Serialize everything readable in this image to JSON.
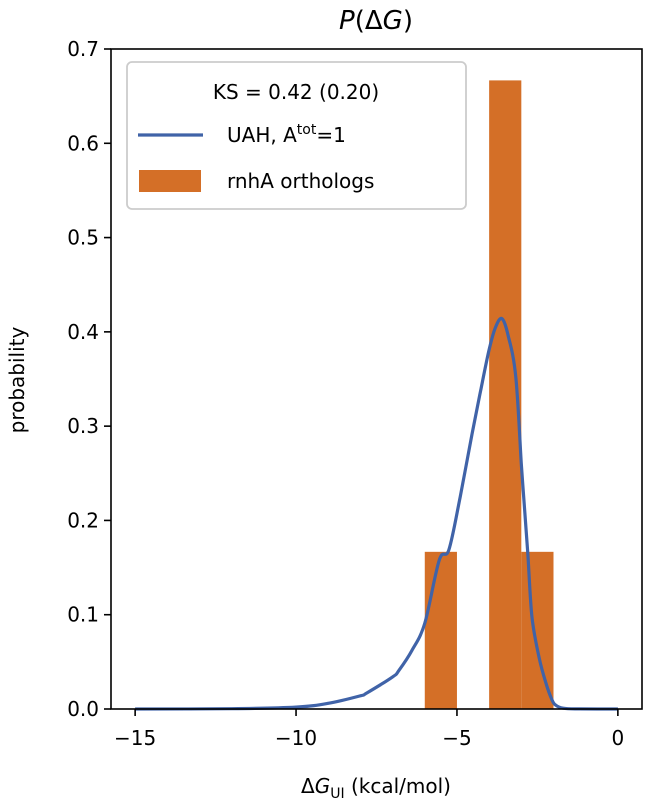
{
  "chart_data": {
    "type": "bar",
    "title": "P(ΔG)",
    "title_parts": {
      "italic_main": "P",
      "open": "(Δ",
      "italic_var": "G",
      "close": ")"
    },
    "xlabel": "ΔG_UI (kcal/mol)",
    "xlabel_parts": {
      "delta": "Δ",
      "var": "G",
      "sub": "UI",
      "units": " (kcal/mol)"
    },
    "ylabel": "probability",
    "xlim": [
      -15.75,
      0.75
    ],
    "ylim": [
      0.0,
      0.7
    ],
    "xticks": [
      -15,
      -10,
      -5,
      0
    ],
    "xtick_labels": [
      "−15",
      "−10",
      "−5",
      "0"
    ],
    "yticks": [
      0.0,
      0.1,
      0.2,
      0.3,
      0.4,
      0.5,
      0.6,
      0.7
    ],
    "ytick_labels": [
      "0.0",
      "0.1",
      "0.2",
      "0.3",
      "0.4",
      "0.5",
      "0.6",
      "0.7"
    ],
    "grid": false,
    "legend_position": "upper left",
    "legend": {
      "title": "KS = 0.42 (0.20)",
      "entries": [
        {
          "label_main": "UAH, A",
          "label_sup": "tot",
          "label_tail": "=1",
          "label": "UAH, A^tot=1",
          "kind": "line",
          "color": "#4063a8"
        },
        {
          "label": "rnhA orthologs",
          "kind": "patch",
          "color": "#d46f27"
        }
      ]
    },
    "series": [
      {
        "name": "rnhA orthologs",
        "type": "histogram",
        "color": "#d46f27",
        "bins": [
          {
            "x0": -6,
            "x1": -5,
            "value": 0.1667
          },
          {
            "x0": -4,
            "x1": -3,
            "value": 0.6667
          },
          {
            "x0": -3,
            "x1": -2,
            "value": 0.1667
          }
        ]
      },
      {
        "name": "UAH, A^tot=1",
        "type": "line",
        "color": "#4063a8",
        "x": [
          -15,
          -12,
          -10,
          -9,
          -8,
          -7.8,
          -7,
          -6.8,
          -6.4,
          -6.0,
          -5.55,
          -5.25,
          -4.9,
          -4.53,
          -4.25,
          -4.0,
          -3.8,
          -3.6,
          -3.4,
          -3.17,
          -3.0,
          -2.92,
          -2.8,
          -2.67,
          -2.45,
          -2.24,
          -2.05,
          -1.93,
          -1.7,
          -1.2,
          0
        ],
        "y": [
          0.0,
          0.0003,
          0.002,
          0.006,
          0.014,
          0.017,
          0.034,
          0.041,
          0.062,
          0.091,
          0.158,
          0.169,
          0.225,
          0.292,
          0.34,
          0.381,
          0.405,
          0.414,
          0.395,
          0.352,
          0.26,
          0.222,
          0.165,
          0.098,
          0.055,
          0.028,
          0.01,
          0.004,
          0.0008,
          0.0001,
          0.0
        ]
      }
    ]
  },
  "colors": {
    "bar": "#d46f27",
    "line": "#4063a8",
    "legend_border": "#cccccc"
  }
}
